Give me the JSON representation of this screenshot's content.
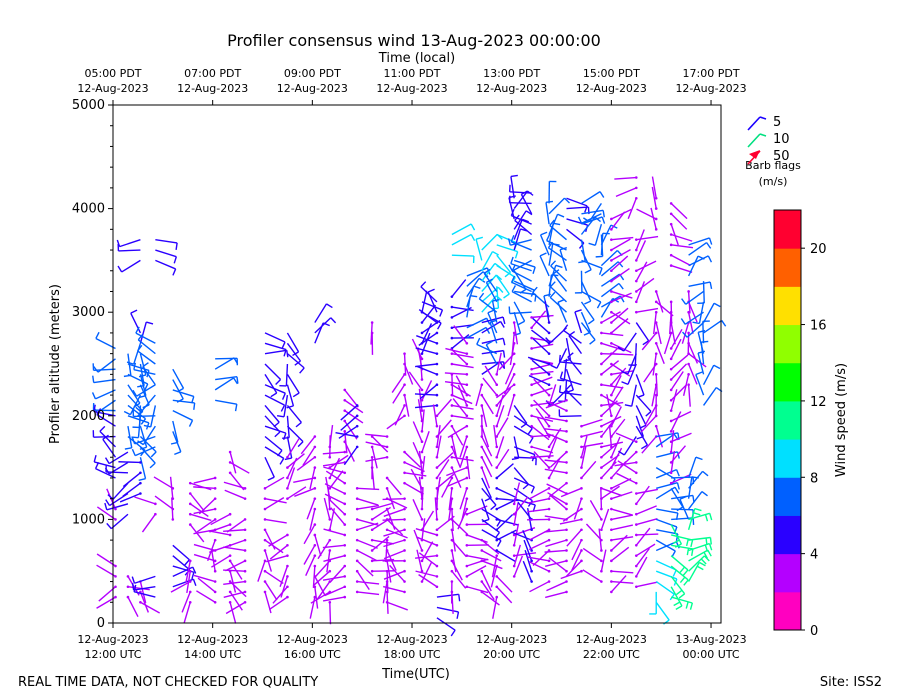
{
  "chart_data": {
    "type": "wind-barb-profile",
    "title": "Profiler consensus wind 13-Aug-2023 00:00:00",
    "top_axis_title": "Time (local)",
    "xlabel": "Time(UTC)",
    "ylabel": "Profiler altitude (meters)",
    "xlim_hours_utc": [
      12.0,
      24.2
    ],
    "ylim": [
      0,
      5000
    ],
    "y_ticks": [
      0,
      1000,
      2000,
      3000,
      4000,
      5000
    ],
    "x_ticks": [
      {
        "hour": 12,
        "line1": "12-Aug-2023",
        "line2": "12:00 UTC"
      },
      {
        "hour": 14,
        "line1": "12-Aug-2023",
        "line2": "14:00 UTC"
      },
      {
        "hour": 16,
        "line1": "12-Aug-2023",
        "line2": "16:00 UTC"
      },
      {
        "hour": 18,
        "line1": "12-Aug-2023",
        "line2": "18:00 UTC"
      },
      {
        "hour": 20,
        "line1": "12-Aug-2023",
        "line2": "20:00 UTC"
      },
      {
        "hour": 22,
        "line1": "12-Aug-2023",
        "line2": "22:00 UTC"
      },
      {
        "hour": 24,
        "line1": "13-Aug-2023",
        "line2": "00:00 UTC"
      }
    ],
    "top_ticks": [
      {
        "hour": 12,
        "line1": "05:00 PDT",
        "line2": "12-Aug-2023"
      },
      {
        "hour": 14,
        "line1": "07:00 PDT",
        "line2": "12-Aug-2023"
      },
      {
        "hour": 16,
        "line1": "09:00 PDT",
        "line2": "12-Aug-2023"
      },
      {
        "hour": 18,
        "line1": "11:00 PDT",
        "line2": "12-Aug-2023"
      },
      {
        "hour": 20,
        "line1": "13:00 PDT",
        "line2": "12-Aug-2023"
      },
      {
        "hour": 22,
        "line1": "15:00 PDT",
        "line2": "12-Aug-2023"
      },
      {
        "hour": 24,
        "line1": "17:00 PDT",
        "line2": "12-Aug-2023"
      }
    ],
    "barb_legend": {
      "title": "Barb flags",
      "units": "(m/s)",
      "items": [
        {
          "label": "5",
          "color": "#1a00ff"
        },
        {
          "label": "10",
          "color": "#00e080"
        },
        {
          "label": "50",
          "color": "#ff0030"
        }
      ]
    },
    "colorbar": {
      "label": "Wind speed (m/s)",
      "range": [
        0,
        22
      ],
      "ticks": [
        0,
        4,
        8,
        12,
        16,
        20
      ],
      "bands": [
        "#ff00c0",
        "#b400ff",
        "#2a00ff",
        "#0060ff",
        "#00e0ff",
        "#00ff90",
        "#00ff00",
        "#90ff00",
        "#ffe000",
        "#ff6000",
        "#ff0030"
      ]
    },
    "profiles": [
      {
        "time": 12.05,
        "segments": [
          [
            2050,
            2650,
            6
          ],
          [
            1400,
            2000,
            5
          ],
          [
            1000,
            1150,
            2
          ],
          [
            250,
            550,
            3
          ]
        ]
      },
      {
        "time": 12.3,
        "segments": [
          [
            1800,
            2650,
            7
          ],
          [
            1050,
            1700,
            5
          ],
          [
            250,
            450,
            3
          ]
        ]
      },
      {
        "time": 12.55,
        "segments": [
          [
            3500,
            3700,
            5
          ],
          [
            2700,
            2800,
            5
          ],
          [
            1600,
            2750,
            6
          ],
          [
            1250,
            1550,
            4
          ],
          [
            200,
            450,
            3
          ]
        ]
      },
      {
        "time": 12.85,
        "segments": [
          [
            3500,
            3700,
            5
          ],
          [
            2300,
            2700,
            7
          ],
          [
            1700,
            2300,
            6
          ],
          [
            1050,
            1150,
            2
          ],
          [
            250,
            450,
            5
          ]
        ]
      },
      {
        "time": 13.2,
        "segments": [
          [
            1850,
            2450,
            6
          ],
          [
            1000,
            1300,
            2
          ],
          [
            350,
            750,
            5
          ]
        ]
      },
      {
        "time": 13.55,
        "segments": [
          [
            950,
            1400,
            2
          ],
          [
            200,
            650,
            3
          ]
        ]
      },
      {
        "time": 14.05,
        "segments": [
          [
            2150,
            2550,
            6
          ],
          [
            800,
            1400,
            2
          ],
          [
            200,
            700,
            3
          ]
        ]
      },
      {
        "time": 14.35,
        "segments": [
          [
            1450,
            1650,
            3
          ],
          [
            650,
            1050,
            2
          ],
          [
            200,
            600,
            3
          ]
        ]
      },
      {
        "time": 14.65,
        "segments": [
          [
            1200,
            1300,
            3
          ],
          [
            200,
            1000,
            2
          ]
        ]
      },
      {
        "time": 15.05,
        "segments": [
          [
            1600,
            2850,
            5
          ],
          [
            1000,
            1300,
            3
          ],
          [
            300,
            900,
            2
          ]
        ]
      },
      {
        "time": 15.5,
        "segments": [
          [
            1800,
            2800,
            5
          ],
          [
            1200,
            1650,
            3
          ],
          [
            250,
            900,
            2
          ]
        ]
      },
      {
        "time": 16.05,
        "segments": [
          [
            2700,
            2900,
            5
          ],
          [
            1100,
            1800,
            3
          ],
          [
            250,
            1000,
            2
          ]
        ]
      },
      {
        "time": 16.35,
        "segments": [
          [
            900,
            1700,
            3
          ],
          [
            200,
            800,
            2
          ]
        ]
      },
      {
        "time": 16.65,
        "segments": [
          [
            1750,
            2300,
            3
          ],
          [
            750,
            1650,
            3
          ],
          [
            250,
            700,
            2
          ]
        ]
      },
      {
        "time": 16.9,
        "segments": [
          [
            1700,
            2150,
            4
          ],
          [
            300,
            1350,
            2
          ]
        ]
      },
      {
        "time": 17.2,
        "segments": [
          [
            2800,
            2950,
            2
          ],
          [
            1500,
            1800,
            3
          ],
          [
            500,
            1100,
            2
          ]
        ]
      },
      {
        "time": 17.5,
        "segments": [
          [
            1600,
            1800,
            3
          ],
          [
            200,
            1400,
            2
          ]
        ]
      },
      {
        "time": 17.85,
        "segments": [
          [
            2000,
            2600,
            3
          ],
          [
            1350,
            1650,
            3
          ],
          [
            300,
            1200,
            2
          ]
        ]
      },
      {
        "time": 18.2,
        "segments": [
          [
            3000,
            3150,
            5
          ],
          [
            2600,
            3000,
            4
          ],
          [
            1450,
            2550,
            3
          ],
          [
            400,
            1400,
            2
          ]
        ]
      },
      {
        "time": 18.5,
        "segments": [
          [
            3000,
            3150,
            5
          ],
          [
            2100,
            2950,
            4
          ],
          [
            900,
            2050,
            3
          ],
          [
            350,
            850,
            2
          ],
          [
            50,
            250,
            5
          ]
        ]
      },
      {
        "time": 18.8,
        "segments": [
          [
            3550,
            3750,
            8
          ],
          [
            2650,
            3150,
            4
          ],
          [
            1600,
            2600,
            3
          ],
          [
            300,
            1500,
            3
          ]
        ]
      },
      {
        "time": 19.1,
        "segments": [
          [
            2750,
            3350,
            7
          ],
          [
            2000,
            2700,
            3
          ],
          [
            1100,
            1950,
            3
          ],
          [
            350,
            1050,
            3
          ]
        ]
      },
      {
        "time": 19.4,
        "segments": [
          [
            3000,
            3650,
            8
          ],
          [
            2400,
            2950,
            5
          ],
          [
            1500,
            2350,
            2
          ],
          [
            900,
            1450,
            5
          ],
          [
            300,
            850,
            2
          ]
        ]
      },
      {
        "time": 19.7,
        "segments": [
          [
            3250,
            3750,
            8
          ],
          [
            2500,
            3200,
            6
          ],
          [
            1500,
            2450,
            2
          ],
          [
            700,
            1450,
            4
          ],
          [
            250,
            650,
            2
          ]
        ]
      },
      {
        "time": 20.05,
        "segments": [
          [
            3600,
            4100,
            5
          ],
          [
            3000,
            3550,
            7
          ],
          [
            2200,
            2950,
            3
          ],
          [
            1200,
            2150,
            5
          ],
          [
            450,
            1150,
            3
          ]
        ]
      },
      {
        "time": 20.4,
        "segments": [
          [
            3750,
            4150,
            5
          ],
          [
            3000,
            3700,
            6
          ],
          [
            2450,
            2950,
            3
          ],
          [
            1600,
            2400,
            3
          ],
          [
            400,
            1000,
            4
          ]
        ]
      },
      {
        "time": 20.75,
        "segments": [
          [
            3650,
            4100,
            6
          ],
          [
            2950,
            3600,
            6
          ],
          [
            2300,
            2900,
            4
          ],
          [
            1400,
            2250,
            3
          ],
          [
            400,
            1300,
            2
          ]
        ]
      },
      {
        "time": 21.1,
        "segments": [
          [
            3800,
            4150,
            5
          ],
          [
            2900,
            3750,
            6
          ],
          [
            2250,
            2850,
            5
          ],
          [
            1150,
            2200,
            3
          ],
          [
            300,
            1100,
            2
          ]
        ]
      },
      {
        "time": 21.4,
        "segments": [
          [
            3750,
            4050,
            6
          ],
          [
            2900,
            3700,
            6
          ],
          [
            2000,
            2850,
            5
          ],
          [
            1400,
            1950,
            3
          ],
          [
            500,
            1350,
            2
          ]
        ]
      },
      {
        "time": 21.8,
        "segments": [
          [
            3750,
            4050,
            6
          ],
          [
            2950,
            3700,
            6
          ],
          [
            2000,
            2900,
            3
          ],
          [
            1200,
            1950,
            3
          ],
          [
            400,
            1150,
            2
          ]
        ]
      },
      {
        "time": 22.0,
        "segments": [
          [
            3600,
            3950,
            3
          ],
          [
            2400,
            3550,
            2
          ],
          [
            1500,
            2350,
            3
          ],
          [
            300,
            1450,
            2
          ]
        ]
      },
      {
        "time": 22.5,
        "segments": [
          [
            4100,
            4300,
            3
          ],
          [
            3000,
            3700,
            3
          ],
          [
            1800,
            2950,
            5
          ],
          [
            1350,
            1750,
            3
          ],
          [
            350,
            1300,
            2
          ]
        ]
      },
      {
        "time": 22.9,
        "segments": [
          [
            3800,
            4100,
            3
          ],
          [
            3100,
            3200,
            2
          ],
          [
            1800,
            3000,
            3
          ],
          [
            700,
            1800,
            6
          ],
          [
            200,
            650,
            8
          ]
        ]
      },
      {
        "time": 23.2,
        "segments": [
          [
            3450,
            4100,
            3
          ],
          [
            2800,
            3150,
            3
          ],
          [
            1350,
            2700,
            3
          ],
          [
            1000,
            1400,
            7
          ],
          [
            250,
            950,
            10
          ]
        ]
      },
      {
        "time": 23.55,
        "segments": [
          [
            3250,
            3700,
            6
          ],
          [
            2300,
            3200,
            3
          ],
          [
            1000,
            1450,
            7
          ],
          [
            400,
            1050,
            10
          ]
        ]
      },
      {
        "time": 23.85,
        "segments": [
          [
            2900,
            3300,
            7
          ],
          [
            2100,
            2900,
            6
          ]
        ]
      }
    ]
  },
  "footer": {
    "left_note": "REAL TIME DATA, NOT CHECKED FOR QUALITY",
    "site": "Site: ISS2"
  }
}
